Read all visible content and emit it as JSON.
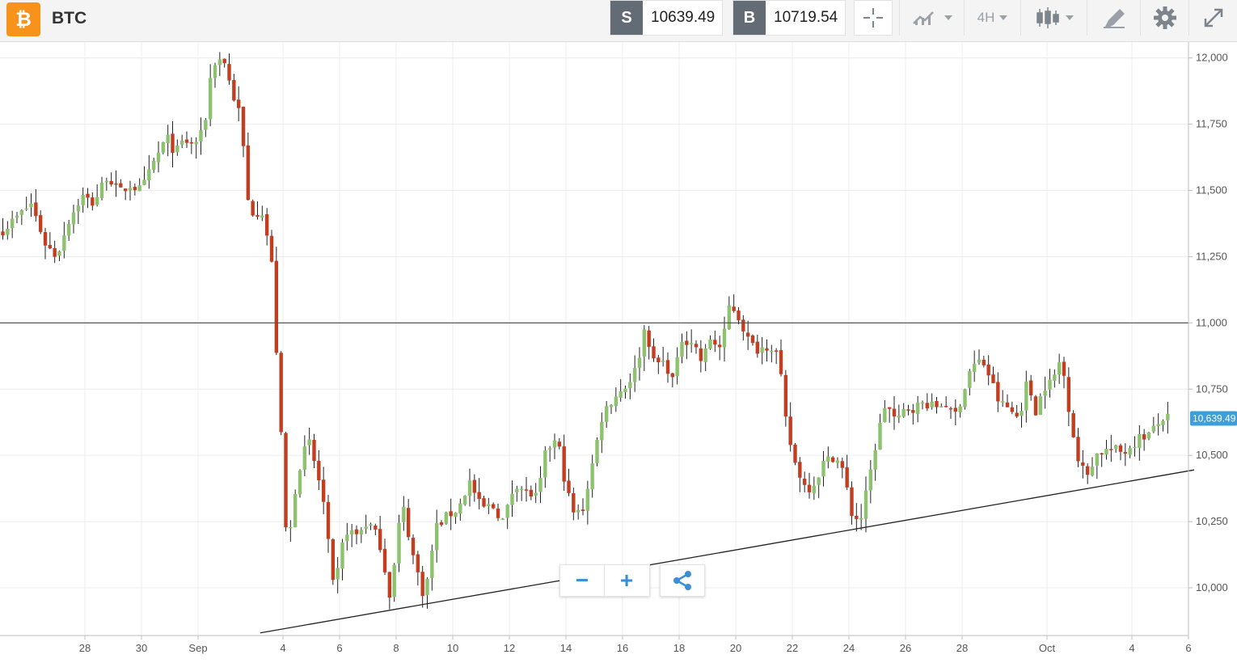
{
  "header": {
    "logo_symbol": "₿",
    "logo_color": "#f7931a",
    "symbol": "BTC",
    "sell_label": "S",
    "sell_price": "10639.49",
    "buy_label": "B",
    "buy_price": "10719.54",
    "timeframe": "4H",
    "icons": [
      "crosshair-icon",
      "chart-compare-icon",
      "candlestick-icon",
      "drawing-tools-icon",
      "gear-icon",
      "fullscreen-icon"
    ]
  },
  "zoom_controls": {
    "minus": "−",
    "plus": "+",
    "share_icon": "share-icon"
  },
  "chart_data": {
    "type": "candlestick",
    "instrument": "BTC",
    "timeframe": "4H",
    "up_color": "#8dc26f",
    "down_color": "#c33d21",
    "x_axis": {
      "unit": "days since Aug 26",
      "range": [
        -1,
        41
      ],
      "ticks": [
        {
          "x": 2,
          "label": "28"
        },
        {
          "x": 4,
          "label": "30"
        },
        {
          "x": 6,
          "label": "Sep"
        },
        {
          "x": 9,
          "label": "4"
        },
        {
          "x": 11,
          "label": "6"
        },
        {
          "x": 13,
          "label": "8"
        },
        {
          "x": 15,
          "label": "10"
        },
        {
          "x": 17,
          "label": "12"
        },
        {
          "x": 19,
          "label": "14"
        },
        {
          "x": 21,
          "label": "16"
        },
        {
          "x": 23,
          "label": "18"
        },
        {
          "x": 25,
          "label": "20"
        },
        {
          "x": 27,
          "label": "22"
        },
        {
          "x": 29,
          "label": "24"
        },
        {
          "x": 31,
          "label": "26"
        },
        {
          "x": 33,
          "label": "28"
        },
        {
          "x": 36,
          "label": "Oct"
        },
        {
          "x": 39,
          "label": "4"
        },
        {
          "x": 41,
          "label": "6"
        }
      ]
    },
    "y_axis": {
      "range": [
        9820,
        12060
      ],
      "ticks": [
        10000,
        10250,
        10500,
        10750,
        11000,
        11250,
        11500,
        11750,
        12000
      ],
      "tick_labels": [
        "10,000",
        "10,250",
        "10,500",
        "10,750",
        "11,000",
        "11,250",
        "11,500",
        "11,750",
        "12,000"
      ]
    },
    "horizontal_line": {
      "y": 11000
    },
    "trend_line": {
      "x1": 8.2,
      "y1": 9830,
      "x2": 41.2,
      "y2": 10445
    },
    "last_price": {
      "value": 10639.49,
      "label": "10,639.49",
      "color": "#3e9fd8"
    },
    "anchors": [
      {
        "x": -0.9,
        "y": 11350
      },
      {
        "x": -0.4,
        "y": 11400
      },
      {
        "x": 0.1,
        "y": 11450
      },
      {
        "x": 0.6,
        "y": 11300
      },
      {
        "x": 1.0,
        "y": 11250
      },
      {
        "x": 1.4,
        "y": 11380
      },
      {
        "x": 1.9,
        "y": 11480
      },
      {
        "x": 2.3,
        "y": 11450
      },
      {
        "x": 2.8,
        "y": 11560
      },
      {
        "x": 3.2,
        "y": 11490
      },
      {
        "x": 3.6,
        "y": 11520
      },
      {
        "x": 4.0,
        "y": 11500
      },
      {
        "x": 4.5,
        "y": 11620
      },
      {
        "x": 4.9,
        "y": 11700
      },
      {
        "x": 5.2,
        "y": 11640
      },
      {
        "x": 5.5,
        "y": 11690
      },
      {
        "x": 5.8,
        "y": 11670
      },
      {
        "x": 6.2,
        "y": 11720
      },
      {
        "x": 6.5,
        "y": 11980
      },
      {
        "x": 6.9,
        "y": 12000
      },
      {
        "x": 7.2,
        "y": 11870
      },
      {
        "x": 7.5,
        "y": 11780
      },
      {
        "x": 7.8,
        "y": 11420
      },
      {
        "x": 8.3,
        "y": 11420
      },
      {
        "x": 8.6,
        "y": 11220
      },
      {
        "x": 8.9,
        "y": 10640
      },
      {
        "x": 9.15,
        "y": 10120
      },
      {
        "x": 9.5,
        "y": 10430
      },
      {
        "x": 9.9,
        "y": 10560
      },
      {
        "x": 10.4,
        "y": 10350
      },
      {
        "x": 10.8,
        "y": 9980
      },
      {
        "x": 11.2,
        "y": 10220
      },
      {
        "x": 11.6,
        "y": 10200
      },
      {
        "x": 12.0,
        "y": 10250
      },
      {
        "x": 12.4,
        "y": 10180
      },
      {
        "x": 12.8,
        "y": 9960
      },
      {
        "x": 13.2,
        "y": 10330
      },
      {
        "x": 13.6,
        "y": 10120
      },
      {
        "x": 14.0,
        "y": 9960
      },
      {
        "x": 14.4,
        "y": 10230
      },
      {
        "x": 14.8,
        "y": 10270
      },
      {
        "x": 15.2,
        "y": 10300
      },
      {
        "x": 15.6,
        "y": 10400
      },
      {
        "x": 16.0,
        "y": 10300
      },
      {
        "x": 16.4,
        "y": 10310
      },
      {
        "x": 16.8,
        "y": 10250
      },
      {
        "x": 17.2,
        "y": 10400
      },
      {
        "x": 17.6,
        "y": 10360
      },
      {
        "x": 18.0,
        "y": 10340
      },
      {
        "x": 18.3,
        "y": 10520
      },
      {
        "x": 18.7,
        "y": 10560
      },
      {
        "x": 19.0,
        "y": 10380
      },
      {
        "x": 19.3,
        "y": 10270
      },
      {
        "x": 19.6,
        "y": 10300
      },
      {
        "x": 20.0,
        "y": 10500
      },
      {
        "x": 20.3,
        "y": 10660
      },
      {
        "x": 20.7,
        "y": 10720
      },
      {
        "x": 21.1,
        "y": 10760
      },
      {
        "x": 21.5,
        "y": 10830
      },
      {
        "x": 21.8,
        "y": 10990
      },
      {
        "x": 22.1,
        "y": 10850
      },
      {
        "x": 22.5,
        "y": 10850
      },
      {
        "x": 22.8,
        "y": 10780
      },
      {
        "x": 23.1,
        "y": 10940
      },
      {
        "x": 23.5,
        "y": 10930
      },
      {
        "x": 23.8,
        "y": 10850
      },
      {
        "x": 24.1,
        "y": 10940
      },
      {
        "x": 24.5,
        "y": 10900
      },
      {
        "x": 24.8,
        "y": 11080
      },
      {
        "x": 25.2,
        "y": 11000
      },
      {
        "x": 25.5,
        "y": 10920
      },
      {
        "x": 25.8,
        "y": 10900
      },
      {
        "x": 26.2,
        "y": 10920
      },
      {
        "x": 26.5,
        "y": 10880
      },
      {
        "x": 26.8,
        "y": 10600
      },
      {
        "x": 27.1,
        "y": 10470
      },
      {
        "x": 27.5,
        "y": 10370
      },
      {
        "x": 27.8,
        "y": 10400
      },
      {
        "x": 28.1,
        "y": 10470
      },
      {
        "x": 28.5,
        "y": 10500
      },
      {
        "x": 28.8,
        "y": 10440
      },
      {
        "x": 29.1,
        "y": 10280
      },
      {
        "x": 29.4,
        "y": 10250
      },
      {
        "x": 29.7,
        "y": 10400
      },
      {
        "x": 30.0,
        "y": 10570
      },
      {
        "x": 30.3,
        "y": 10700
      },
      {
        "x": 30.7,
        "y": 10620
      },
      {
        "x": 31.0,
        "y": 10680
      },
      {
        "x": 31.3,
        "y": 10680
      },
      {
        "x": 31.7,
        "y": 10700
      },
      {
        "x": 32.0,
        "y": 10680
      },
      {
        "x": 32.4,
        "y": 10700
      },
      {
        "x": 32.7,
        "y": 10640
      },
      {
        "x": 33.0,
        "y": 10720
      },
      {
        "x": 33.3,
        "y": 10830
      },
      {
        "x": 33.7,
        "y": 10860
      },
      {
        "x": 34.0,
        "y": 10790
      },
      {
        "x": 34.3,
        "y": 10700
      },
      {
        "x": 34.6,
        "y": 10680
      },
      {
        "x": 35.0,
        "y": 10640
      },
      {
        "x": 35.3,
        "y": 10780
      },
      {
        "x": 35.6,
        "y": 10670
      },
      {
        "x": 35.9,
        "y": 10760
      },
      {
        "x": 36.2,
        "y": 10780
      },
      {
        "x": 36.5,
        "y": 10870
      },
      {
        "x": 36.8,
        "y": 10660
      },
      {
        "x": 37.1,
        "y": 10480
      },
      {
        "x": 37.4,
        "y": 10420
      },
      {
        "x": 37.7,
        "y": 10500
      },
      {
        "x": 38.0,
        "y": 10520
      },
      {
        "x": 38.4,
        "y": 10520
      },
      {
        "x": 38.7,
        "y": 10510
      },
      {
        "x": 39.0,
        "y": 10540
      },
      {
        "x": 39.3,
        "y": 10570
      },
      {
        "x": 39.6,
        "y": 10580
      },
      {
        "x": 39.8,
        "y": 10600
      },
      {
        "x": 40.1,
        "y": 10640
      },
      {
        "x": 40.35,
        "y": 10639
      }
    ]
  }
}
